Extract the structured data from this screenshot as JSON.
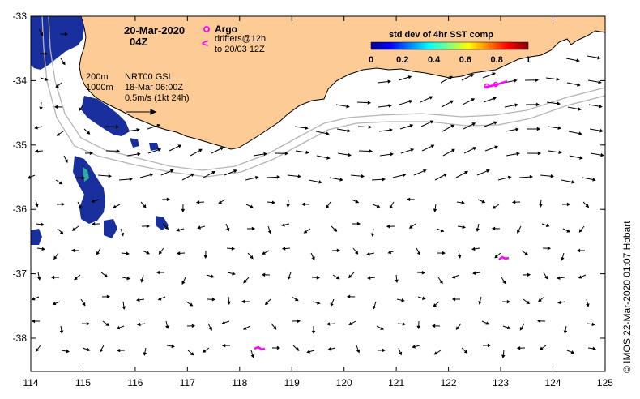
{
  "map": {
    "date": "20-Mar-2020",
    "time": "04Z",
    "legend_argo": "Argo",
    "legend_drifters_line1": "drifters@12h",
    "legend_drifters_line2": "to 20/03 12Z",
    "isobath_200": "200m",
    "isobath_1000": "1000m",
    "product": "NRT00 GSL",
    "product_time": "18-Mar 06:00Z",
    "scale_label": "0.5m/s (1kt 24h)",
    "colorbar_title": "std dev of 4hr SST comp",
    "colorbar_ticks": [
      "0",
      "0.2",
      "0.4",
      "0.6",
      "0.8",
      "1"
    ],
    "credit": "©  IMOS 22-Mar-2020 01:07 Hobart",
    "lon_ticks": [
      "114",
      "115",
      "116",
      "117",
      "118",
      "119",
      "120",
      "121",
      "122",
      "123",
      "124",
      "125"
    ],
    "lat_ticks": [
      "-33",
      "-34",
      "-35",
      "-36",
      "-37",
      "-38"
    ],
    "colors": {
      "land": "#fccb96",
      "sst": "#1a2f9e",
      "argo": "#ff00ff",
      "drifter": "#ff00ff",
      "isobath": "#b4b4b4"
    }
  }
}
